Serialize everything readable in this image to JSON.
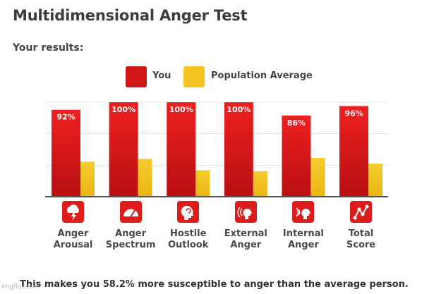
{
  "page": {
    "title": "Multidimensional Anger Test",
    "subtitle": "Your results:",
    "summary": "This makes you 58.2% more susceptible to anger than the average person.",
    "watermark": "imgflip.com"
  },
  "colors": {
    "you": "#dd1c1c",
    "population": "#f4c31f",
    "grid": "#dddddd"
  },
  "icons": [
    "lightning-icon",
    "gauge-icon",
    "head-icon",
    "speaking-head-icon",
    "inner-voice-icon",
    "graph-icon"
  ],
  "chart_data": {
    "type": "bar",
    "categories": [
      "Anger Arousal",
      "Anger Spectrum",
      "Hostile Outlook",
      "External Anger",
      "Internal Anger",
      "Total Score"
    ],
    "category_lines": [
      [
        "Anger",
        "Arousal"
      ],
      [
        "Anger",
        "Spectrum"
      ],
      [
        "Hostile",
        "Outlook"
      ],
      [
        "External",
        "Anger"
      ],
      [
        "Internal",
        "Anger"
      ],
      [
        "Total",
        "Score"
      ]
    ],
    "series": [
      {
        "name": "You",
        "values": [
          92,
          100,
          100,
          100,
          86,
          96
        ],
        "labels": [
          "92%",
          "100%",
          "100%",
          "100%",
          "86%",
          "96%"
        ]
      },
      {
        "name": "Population Average",
        "values": [
          37,
          40,
          28,
          27,
          41,
          35
        ]
      }
    ],
    "ylim": [
      0,
      100
    ],
    "grid": true,
    "legend": "top-center"
  }
}
